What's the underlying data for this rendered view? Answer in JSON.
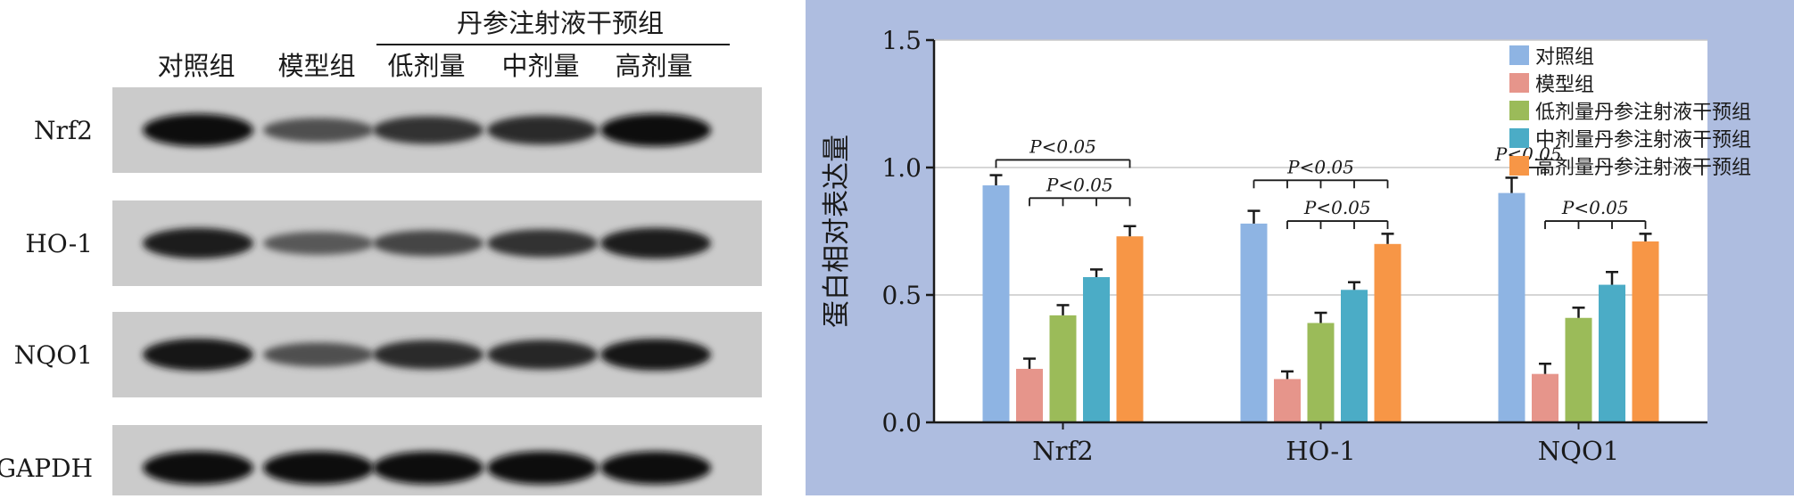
{
  "blot": {
    "treatment_group_label": "丹参注射液干预组",
    "lane_labels": [
      "对照组",
      "模型组",
      "低剂量",
      "中剂量",
      "高剂量"
    ],
    "rows": [
      {
        "label": "Nrf2",
        "intensity": [
          0.95,
          0.55,
          0.72,
          0.78,
          0.95
        ]
      },
      {
        "label": "HO-1",
        "intensity": [
          0.85,
          0.5,
          0.62,
          0.72,
          0.86
        ]
      },
      {
        "label": "NQO1",
        "intensity": [
          0.92,
          0.55,
          0.78,
          0.8,
          0.9
        ]
      },
      {
        "label": "GAPDH",
        "intensity": [
          0.98,
          0.97,
          0.96,
          0.97,
          0.96
        ]
      }
    ]
  },
  "chart_data": {
    "type": "bar",
    "categories": [
      "Nrf2",
      "HO-1",
      "NQO1"
    ],
    "ylabel": "蛋白相对表达量",
    "ylim": [
      0,
      1.5
    ],
    "yticks": [
      "0.0",
      "0.5",
      "1.0",
      "1.5"
    ],
    "grid": true,
    "legend_position": "top-right",
    "series": [
      {
        "name": "对照组",
        "color": "#8EB4E3",
        "values": [
          0.93,
          0.78,
          0.9
        ],
        "errors": [
          0.04,
          0.05,
          0.06
        ]
      },
      {
        "name": "模型组",
        "color": "#E6958B",
        "values": [
          0.21,
          0.17,
          0.19
        ],
        "errors": [
          0.04,
          0.03,
          0.04
        ]
      },
      {
        "name": "低剂量丹参注射液干预组",
        "color": "#9BBB59",
        "values": [
          0.42,
          0.39,
          0.41
        ],
        "errors": [
          0.04,
          0.04,
          0.04
        ]
      },
      {
        "name": "中剂量丹参注射液干预组",
        "color": "#4BACC6",
        "values": [
          0.57,
          0.52,
          0.54
        ],
        "errors": [
          0.03,
          0.03,
          0.05
        ]
      },
      {
        "name": "高剂量丹参注射液干预组",
        "color": "#F79646",
        "values": [
          0.73,
          0.7,
          0.71
        ],
        "errors": [
          0.04,
          0.04,
          0.03
        ]
      }
    ],
    "annotations": [
      {
        "category": 0,
        "text": "P<0.05",
        "from_series": 0,
        "to_series": 4,
        "tick_series": [
          0,
          4
        ],
        "level": 1.03
      },
      {
        "category": 0,
        "text": "P<0.05",
        "from_series": 1,
        "to_series": 4,
        "tick_series": [
          1,
          2,
          3,
          4
        ],
        "level": 0.88
      },
      {
        "category": 1,
        "text": "P<0.05",
        "from_series": 0,
        "to_series": 4,
        "tick_series": [
          0,
          1,
          2,
          3,
          4
        ],
        "level": 0.95
      },
      {
        "category": 1,
        "text": "P<0.05",
        "from_series": 1,
        "to_series": 4,
        "tick_series": [
          1,
          2,
          3,
          4
        ],
        "level": 0.79
      },
      {
        "category": 2,
        "text": "P<0.05",
        "from_series": 0,
        "to_series": 1,
        "tick_series": [
          0,
          1
        ],
        "level": 1.0
      },
      {
        "category": 2,
        "text": "P<0.05",
        "from_series": 1,
        "to_series": 4,
        "tick_series": [
          1,
          2,
          3,
          4
        ],
        "level": 0.79
      }
    ]
  }
}
